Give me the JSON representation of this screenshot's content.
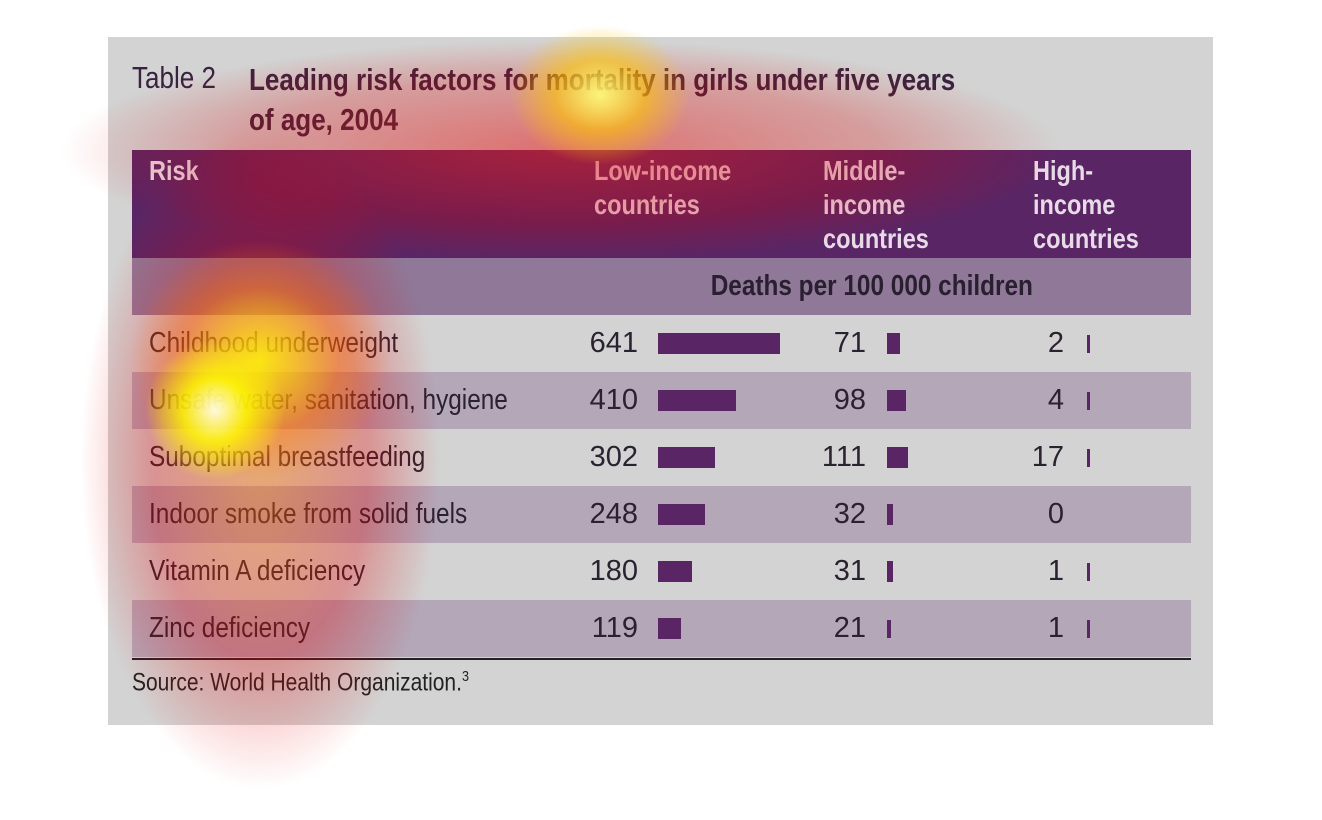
{
  "table": {
    "label": "Table 2",
    "title_lines": [
      "Leading risk factors for mortality in girls under five years",
      "of age, 2004"
    ],
    "columns": [
      [
        "Risk"
      ],
      [
        "Low-income",
        "countries"
      ],
      [
        "Middle-",
        "income",
        "countries"
      ],
      [
        "High-",
        "income",
        "countries"
      ]
    ],
    "unit": "Deaths per 100 000 children",
    "rows": [
      [
        "Childhood underweight",
        641,
        71,
        2
      ],
      [
        "Unsafe water, sanitation, hygiene",
        410,
        98,
        4
      ],
      [
        "Suboptimal breastfeeding",
        302,
        111,
        17
      ],
      [
        "Indoor smoke from solid fuels",
        248,
        32,
        0
      ],
      [
        "Vitamin A deficiency",
        180,
        31,
        1
      ],
      [
        "Zinc deficiency",
        119,
        21,
        1
      ]
    ],
    "source": "Source: World Health Organization.",
    "source_ref": "3"
  }
}
